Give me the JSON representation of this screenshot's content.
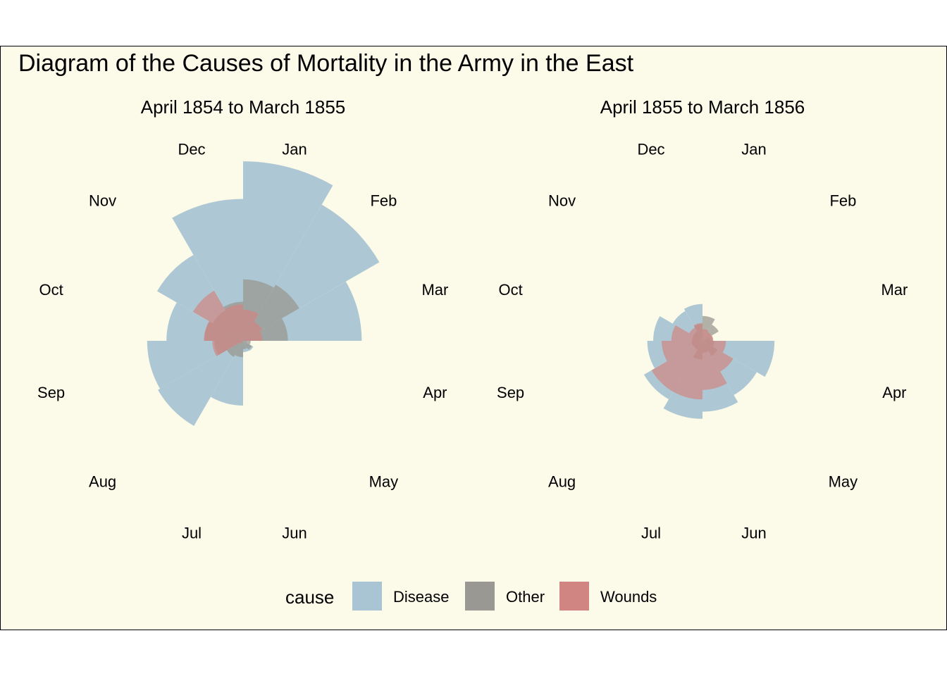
{
  "chart_data": {
    "type": "polar-area",
    "title": "Diagram of the Causes of Mortality in the Army in the East",
    "legend": {
      "title": "cause",
      "position": "bottom",
      "items": [
        {
          "label": "Disease",
          "color": "#a9c5d3"
        },
        {
          "label": "Other",
          "color": "#9a9892"
        },
        {
          "label": "Wounds",
          "color": "#d08582"
        }
      ]
    },
    "background_color": "#fcfae8",
    "months": [
      "Jan",
      "Feb",
      "Mar",
      "Apr",
      "May",
      "Jun",
      "Jul",
      "Aug",
      "Sep",
      "Oct",
      "Nov",
      "Dec"
    ],
    "panels": [
      {
        "title": "April 1854 to March 1855",
        "series": [
          {
            "name": "Disease",
            "values": [
              2761,
              2120,
              1205,
              1,
              12,
              11,
              359,
              828,
              788,
              503,
              844,
              1725
            ]
          },
          {
            "name": "Other",
            "values": [
              324,
              361,
              172,
              5,
              9,
              6,
              23,
              30,
              70,
              128,
              106,
              131
            ]
          },
          {
            "name": "Wounds",
            "values": [
              83,
              42,
              32,
              0,
              0,
              0,
              0,
              1,
              81,
              132,
              287,
              114
            ]
          }
        ]
      },
      {
        "title": "April 1855 to March 1856",
        "series": [
          {
            "name": "Disease",
            "values": [
              0,
              0,
              5,
              444,
              336,
              430,
              522,
              391,
              261,
              208,
              102,
              116
            ]
          },
          {
            "name": "Other",
            "values": [
              53,
              30,
              9,
              12,
              26,
              12,
              30,
              9,
              10,
              9,
              10,
              24
            ]
          },
          {
            "name": "Wounds",
            "values": [
              12,
              9,
              10,
              47,
              108,
              206,
              295,
              296,
              143,
              83,
              20,
              27
            ]
          }
        ]
      }
    ]
  }
}
